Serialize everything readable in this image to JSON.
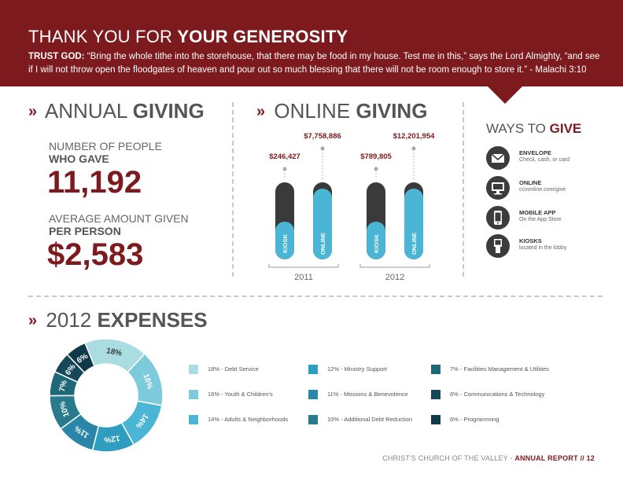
{
  "header": {
    "title_light": "THANK YOU FOR",
    "title_bold": "YOUR GENEROSITY",
    "quote_lead": "TRUST GOD:",
    "quote_text": "“Bring the whole tithe into the storehouse, that there may be food in my house. Test me in this,” says the Lord Almighty, “and see if I will not throw open the floodgates of heaven and pour out so much blessing that there will not be room enough to store it.” - Malachi 3:10"
  },
  "annual_giving": {
    "title_light": "ANNUAL",
    "title_bold": "GIVING",
    "people_label_1": "NUMBER OF PEOPLE",
    "people_label_2": "WHO GAVE",
    "people_value": "11,192",
    "avg_label_1": "AVERAGE AMOUNT GIVEN",
    "avg_label_2": "PER PERSON",
    "avg_value": "$2,583"
  },
  "online_giving": {
    "title_light": "ONLINE",
    "title_bold": "GIVING"
  },
  "ways_to_give": {
    "title_light": "WAYS TO",
    "title_bold": "GIVE",
    "items": [
      {
        "name": "ENVELOPE",
        "desc": "Check, cash, or card",
        "icon": "envelope-icon"
      },
      {
        "name": "ONLINE",
        "desc": "ccvonline.com/give",
        "icon": "monitor-icon"
      },
      {
        "name": "MOBILE APP",
        "desc": "On the App Store",
        "icon": "phone-icon"
      },
      {
        "name": "KIOSKS",
        "desc": "located in the lobby",
        "icon": "kiosk-icon"
      }
    ]
  },
  "expenses": {
    "title_light": "2012",
    "title_bold": "EXPENSES"
  },
  "footer": {
    "org": "CHRIST'S CHURCH OF THE VALLEY -",
    "report": "ANNUAL REPORT",
    "page": "// 12"
  },
  "chart_data": [
    {
      "type": "bar",
      "categories": [
        "2011",
        "2012"
      ],
      "series": [
        {
          "name": "KIOSK",
          "values": [
            246427,
            789805
          ],
          "labels": [
            "$246,427",
            "$789,805"
          ],
          "color": "#4ab5d4"
        },
        {
          "name": "ONLINE",
          "values": [
            7758886,
            12201954
          ],
          "labels": [
            "$7,758,886",
            "$12,201,954"
          ],
          "color": "#4ab5d4"
        }
      ],
      "track_color": "#3a3a3a"
    },
    {
      "type": "pie",
      "labels": [
        "18% - Debt Service",
        "16% - Youth & Children's",
        "14% - Adults & Neighborhoods",
        "12% - Ministry Support",
        "11% - Missions & Benevolence",
        "10% - Additional Debt Reduction",
        "7% - Facilities Management & Utilities",
        "6% - Communications & Technology",
        "6% - Programming"
      ],
      "values": [
        18,
        16,
        14,
        12,
        11,
        10,
        7,
        6,
        6
      ],
      "colors": [
        "#a9dde2",
        "#7ccbdc",
        "#4ab5d4",
        "#2e9dc0",
        "#2a86a8",
        "#2a7a8e",
        "#1f6878",
        "#17485a",
        "#0f3848"
      ]
    }
  ]
}
